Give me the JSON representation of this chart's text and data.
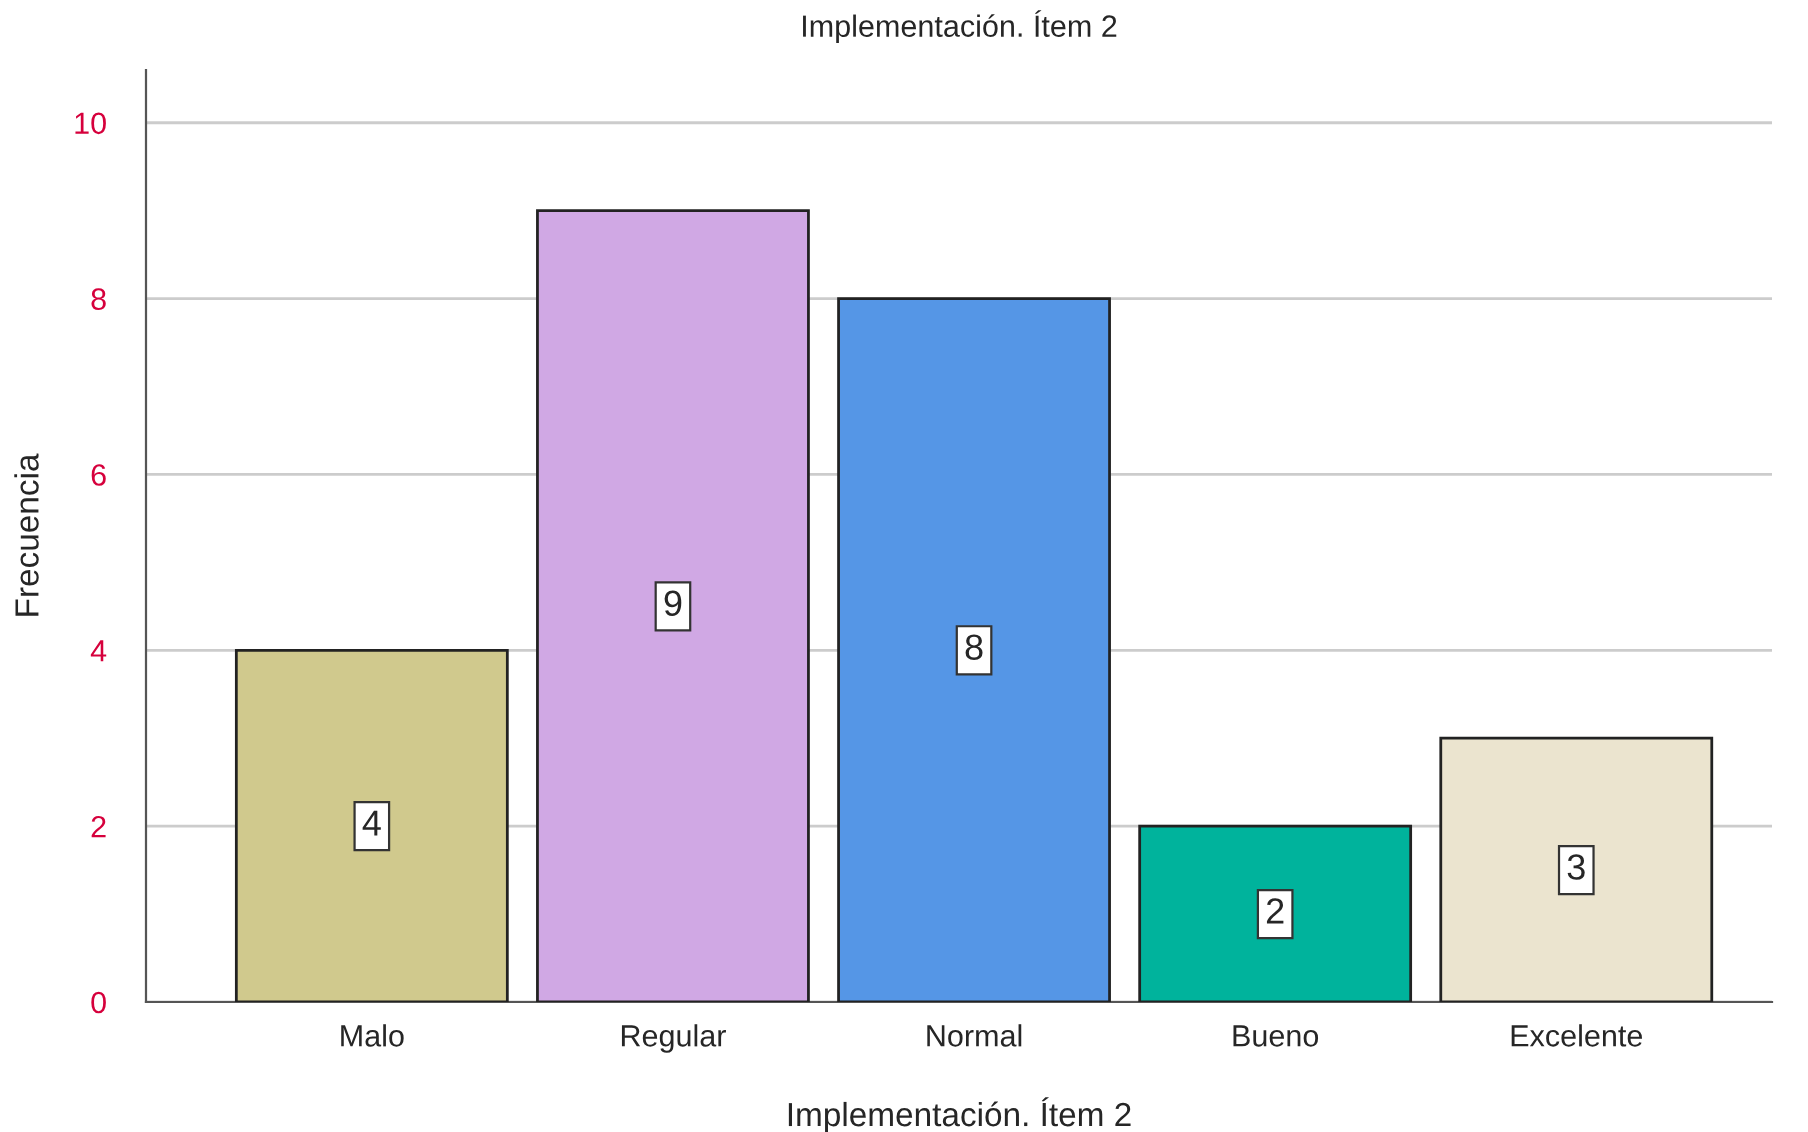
{
  "chart_data": {
    "type": "bar",
    "title": "Implementación. Ítem 2",
    "xlabel": "Implementación. Ítem 2",
    "ylabel": "Frecuencia",
    "categories": [
      "Malo",
      "Regular",
      "Normal",
      "Bueno",
      "Excelente"
    ],
    "values": [
      4,
      9,
      8,
      2,
      3
    ],
    "colors": [
      "#d0c98d",
      "#d0a8e4",
      "#5596e6",
      "#00b39c",
      "#ebe4cf"
    ],
    "ylim": [
      0,
      10.6
    ],
    "yticks": [
      0,
      2,
      4,
      6,
      8,
      10
    ],
    "grid": "y",
    "data_labels": true
  }
}
